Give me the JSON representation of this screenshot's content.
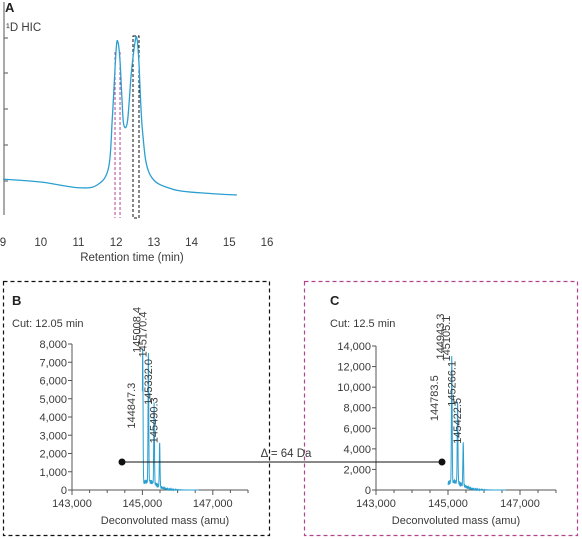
{
  "colors": {
    "trace": "#2a9fd0",
    "cut_b": "#111111",
    "cut_c": "#b0458f",
    "axis": "#555555"
  },
  "chart_data": [
    {
      "type": "line",
      "panel": "A",
      "title": "¹D HIC",
      "xlabel": "Retention time (min)",
      "ylabel": "",
      "xlim": [
        9,
        16
      ],
      "x_ticks": [
        "9",
        "10",
        "11",
        "12",
        "13",
        "14",
        "15",
        "16"
      ],
      "grid": false,
      "cuts": [
        12.05,
        12.5
      ],
      "x": [
        9.0,
        10.0,
        11.0,
        11.5,
        11.8,
        11.9,
        12.0,
        12.05,
        12.1,
        12.15,
        12.2,
        12.3,
        12.4,
        12.5,
        12.55,
        12.6,
        12.7,
        12.9,
        13.5,
        14.5,
        15.2
      ],
      "y": [
        0.02,
        0.0,
        -0.04,
        -0.02,
        0.1,
        0.45,
        0.92,
        0.97,
        0.85,
        0.6,
        0.4,
        0.42,
        0.75,
        0.97,
        1.0,
        0.85,
        0.35,
        0.05,
        -0.05,
        -0.08,
        -0.09
      ]
    },
    {
      "type": "bar",
      "panel": "B",
      "subtitle": "Cut: 12.05 min",
      "xlabel": "Deconvoluted mass (amu)",
      "ylabel": "",
      "xlim": [
        143000,
        148000
      ],
      "ylim": [
        0,
        8000
      ],
      "x_ticks": [
        "143,000",
        "145,000",
        "147,000"
      ],
      "y_ticks": [
        "0",
        "1,000",
        "2,000",
        "3,000",
        "4,000",
        "5,000",
        "6,000",
        "7,000",
        "8,000"
      ],
      "peaks": [
        {
          "label": "144847.3",
          "x": 144847.3,
          "y": 3200
        },
        {
          "label": "145008.4",
          "x": 145008.4,
          "y": 7350
        },
        {
          "label": "145170.4",
          "x": 145170.4,
          "y": 7100
        },
        {
          "label": "145332.0",
          "x": 145332.0,
          "y": 4500
        },
        {
          "label": "145490.3",
          "x": 145490.3,
          "y": 2400
        }
      ]
    },
    {
      "type": "bar",
      "panel": "C",
      "subtitle": "Cut: 12.5 min",
      "xlabel": "Deconvoluted mass (amu)",
      "ylabel": "",
      "xlim": [
        143000,
        148000
      ],
      "ylim": [
        0,
        14000
      ],
      "x_ticks": [
        "143,000",
        "145,000",
        "147,000"
      ],
      "y_ticks": [
        "0",
        "2,000",
        "4,000",
        "6,000",
        "8,000",
        "10,000",
        "12,000",
        "14,000"
      ],
      "peaks": [
        {
          "label": "144783.5",
          "x": 144783.5,
          "y": 6400
        },
        {
          "label": "144943.3",
          "x": 144943.3,
          "y": 12400
        },
        {
          "label": "145105.1",
          "x": 145105.1,
          "y": 12200
        },
        {
          "label": "145266.1",
          "x": 145266.1,
          "y": 7800
        },
        {
          "label": "145422.5",
          "x": 145422.5,
          "y": 4200
        }
      ]
    }
  ],
  "annotation": {
    "delta": "Δ = 64 Da"
  }
}
